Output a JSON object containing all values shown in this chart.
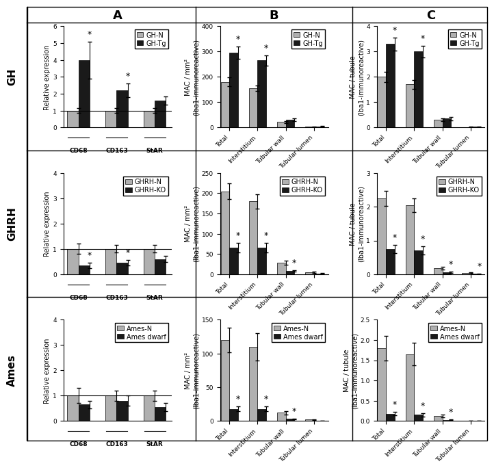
{
  "row_labels": [
    "GH",
    "GHRH",
    "Ames"
  ],
  "col_labels": [
    "A",
    "B",
    "C"
  ],
  "panel_A": {
    "GH": {
      "legend": [
        "GH-N",
        "GH-Tg"
      ],
      "values": [
        1.0,
        4.0,
        1.0,
        2.2,
        1.0,
        1.6
      ],
      "errors": [
        0.15,
        1.1,
        0.15,
        0.4,
        0.15,
        0.25
      ],
      "significance": [
        false,
        true,
        false,
        true,
        false,
        false
      ],
      "ylim": [
        0,
        6
      ],
      "yticks": [
        0,
        1,
        2,
        3,
        4,
        5,
        6
      ],
      "ylabel": "Relative expression",
      "group_labels": [
        "CD68",
        "CD163",
        "StAR"
      ]
    },
    "GHRH": {
      "legend": [
        "GHRH-N",
        "GHRH-KO"
      ],
      "values": [
        1.0,
        0.35,
        1.0,
        0.45,
        1.0,
        0.6
      ],
      "errors": [
        0.2,
        0.1,
        0.15,
        0.1,
        0.15,
        0.12
      ],
      "significance": [
        false,
        true,
        false,
        true,
        false,
        false
      ],
      "ylim": [
        0,
        4
      ],
      "yticks": [
        0,
        1,
        2,
        3,
        4
      ],
      "ylabel": "Relative expression",
      "group_labels": [
        "CD68",
        "CD163",
        "StAR"
      ]
    },
    "Ames": {
      "legend": [
        "Ames-N",
        "Ames dwarf"
      ],
      "values": [
        1.0,
        0.65,
        1.0,
        0.8,
        1.0,
        0.55
      ],
      "errors": [
        0.3,
        0.15,
        0.2,
        0.2,
        0.2,
        0.15
      ],
      "significance": [
        false,
        false,
        false,
        false,
        false,
        false
      ],
      "ylim": [
        0,
        4
      ],
      "yticks": [
        0,
        1,
        2,
        3,
        4
      ],
      "ylabel": "Relative expression",
      "group_labels": [
        "CD68",
        "CD163",
        "StAR"
      ]
    }
  },
  "panel_B": {
    "GH": {
      "legend": [
        "GH-N",
        "GH-Tg"
      ],
      "values": [
        180,
        295,
        155,
        265,
        22,
        30,
        3,
        4
      ],
      "errors": [
        18,
        25,
        12,
        20,
        4,
        5,
        1,
        1
      ],
      "significance": [
        false,
        true,
        false,
        true,
        false,
        false,
        false,
        false
      ],
      "ylim": [
        0,
        400
      ],
      "yticks": [
        0,
        100,
        200,
        300,
        400
      ],
      "ylabel": "MAC / mm²\n(Iba1-immunoreactive)",
      "group_labels": [
        "Total",
        "Interstitium",
        "Tubular wall",
        "Tubular lumen"
      ]
    },
    "GHRH": {
      "legend": [
        "GHRH-N",
        "GHRH-KO"
      ],
      "values": [
        205,
        65,
        180,
        65,
        28,
        8,
        5,
        2
      ],
      "errors": [
        20,
        12,
        18,
        12,
        5,
        2,
        1.5,
        0.8
      ],
      "significance": [
        false,
        true,
        false,
        true,
        false,
        true,
        false,
        false
      ],
      "ylim": [
        0,
        250
      ],
      "yticks": [
        0,
        50,
        100,
        150,
        200,
        250
      ],
      "ylabel": "MAC / mm²\n(Iba1-immunoreactive)",
      "group_labels": [
        "Total",
        "Interstitium",
        "Tubular wall",
        "Tubular lumen"
      ]
    },
    "Ames": {
      "legend": [
        "Ames-N",
        "Ames dwarf"
      ],
      "values": [
        120,
        18,
        110,
        18,
        12,
        3,
        2,
        0.5
      ],
      "errors": [
        18,
        4,
        20,
        4,
        3,
        0.8,
        0.5,
        0.2
      ],
      "significance": [
        false,
        true,
        false,
        true,
        false,
        true,
        false,
        false
      ],
      "ylim": [
        0,
        150
      ],
      "yticks": [
        0,
        50,
        100,
        150
      ],
      "ylabel": "MAC / mm²\n(Iba1-immunoreactive)",
      "group_labels": [
        "Total",
        "Interstitium",
        "Tubular wall",
        "Tubular lumen"
      ]
    }
  },
  "panel_C": {
    "GH": {
      "legend": [
        "GH-N",
        "GH-Tg"
      ],
      "values": [
        2.0,
        3.3,
        1.7,
        3.0,
        0.3,
        0.35,
        0.02,
        0.03
      ],
      "errors": [
        0.2,
        0.25,
        0.18,
        0.22,
        0.06,
        0.07,
        0.008,
        0.01
      ],
      "significance": [
        false,
        true,
        false,
        true,
        false,
        false,
        false,
        false
      ],
      "ylim": [
        0,
        4
      ],
      "yticks": [
        0,
        1,
        2,
        3,
        4
      ],
      "ylabel": "MAC / tubule\n(Iba1-immunoreactive)",
      "group_labels": [
        "Total",
        "Interstitium",
        "Tubular wall",
        "Tubular lumen"
      ]
    },
    "GHRH": {
      "legend": [
        "GHRH-N",
        "GHRH-KO"
      ],
      "values": [
        2.25,
        0.75,
        2.05,
        0.7,
        0.18,
        0.06,
        0.04,
        0.01
      ],
      "errors": [
        0.22,
        0.12,
        0.2,
        0.12,
        0.04,
        0.015,
        0.01,
        0.004
      ],
      "significance": [
        false,
        true,
        false,
        true,
        false,
        true,
        false,
        true
      ],
      "ylim": [
        0,
        3
      ],
      "yticks": [
        0,
        1,
        2,
        3
      ],
      "ylabel": "MAC / tubule\n(Iba1-immunoreactive)",
      "group_labels": [
        "Total",
        "Interstitium",
        "Tubular wall",
        "Tubular lumen"
      ]
    },
    "Ames": {
      "legend": [
        "Ames-N",
        "Ames dwarf"
      ],
      "values": [
        1.8,
        0.18,
        1.65,
        0.15,
        0.12,
        0.03,
        0.01,
        0.005
      ],
      "errors": [
        0.3,
        0.04,
        0.28,
        0.04,
        0.03,
        0.008,
        0.003,
        0.002
      ],
      "significance": [
        false,
        true,
        false,
        true,
        false,
        true,
        false,
        false
      ],
      "ylim": [
        0,
        2.5
      ],
      "yticks": [
        0,
        0.5,
        1.0,
        1.5,
        2.0,
        2.5
      ],
      "ylabel": "MAC / tubule\n(Iba1-immunoreactive)",
      "group_labels": [
        "Total",
        "Interstitium",
        "Tubular wall",
        "Tubular lumen"
      ]
    }
  },
  "bar_width": 0.35,
  "bar_color_normal": "#b0b0b0",
  "bar_color_ko": "#1a1a1a",
  "font_size_label": 7,
  "font_size_tick": 6.5,
  "font_size_legend": 7,
  "font_size_panel": 13,
  "font_size_row": 11
}
